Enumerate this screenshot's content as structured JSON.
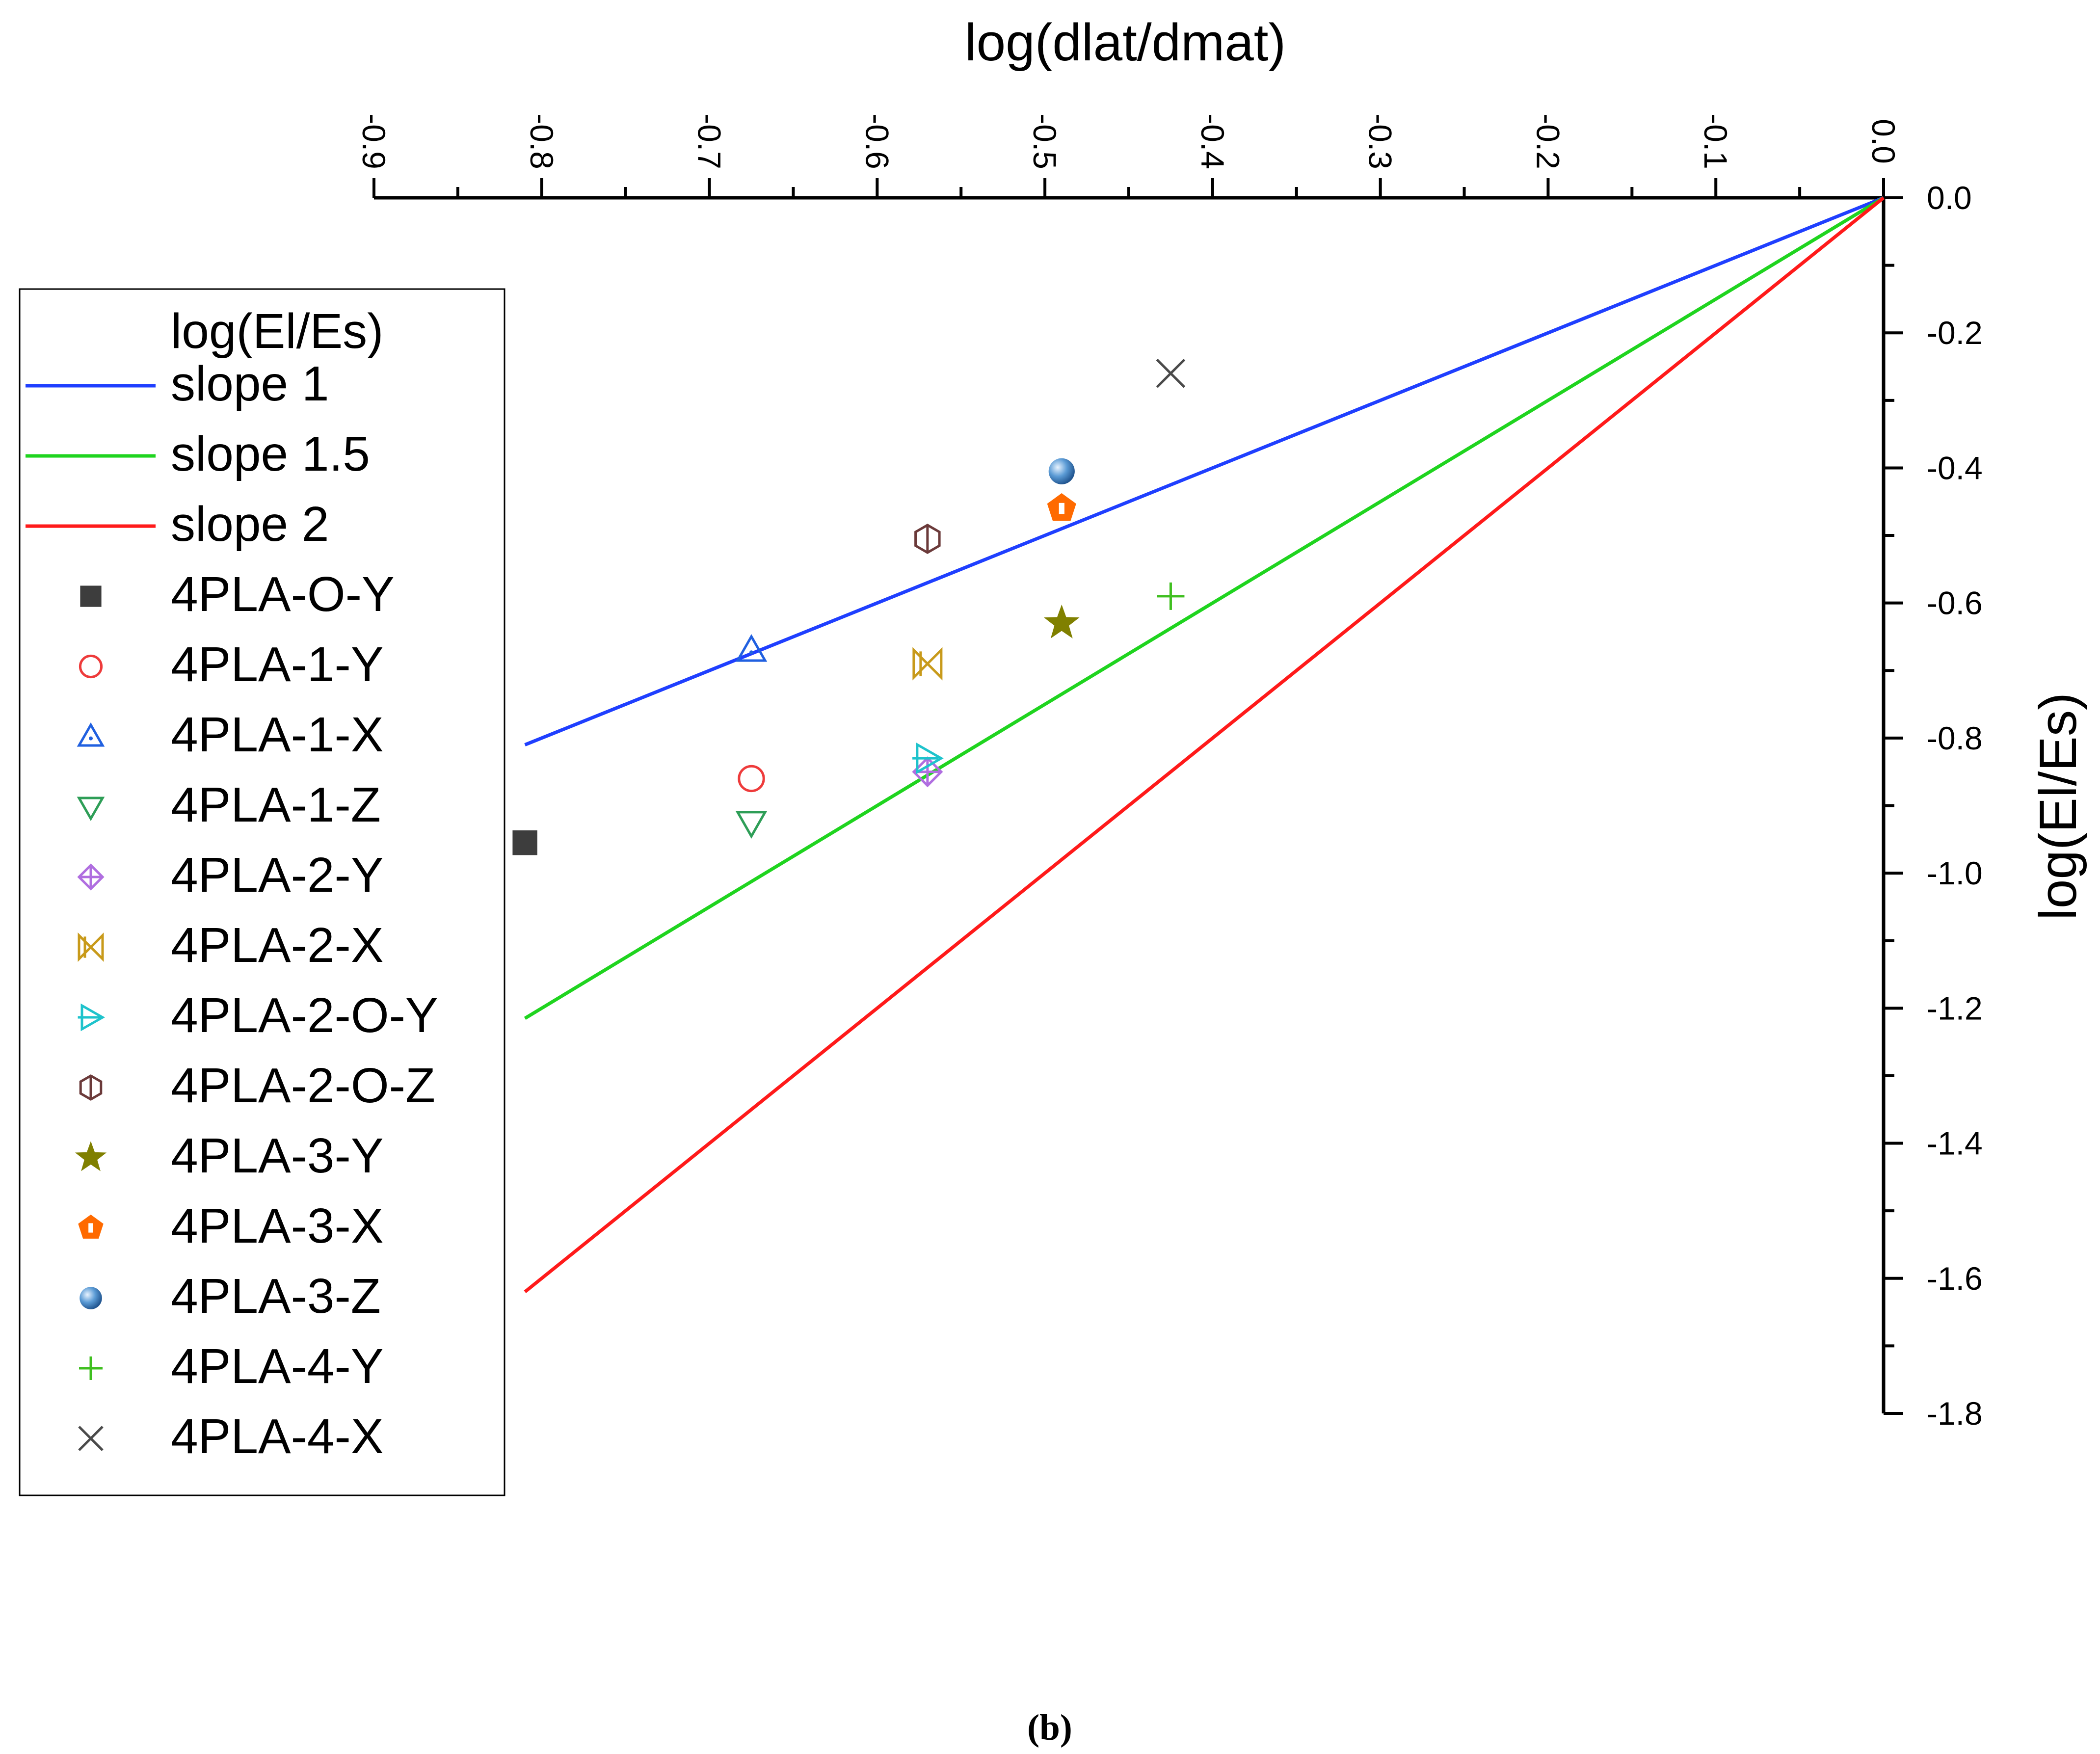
{
  "caption": "(b)",
  "chart_data": {
    "type": "scatter",
    "title": "",
    "xlabel": "log(dlat/dmat)",
    "ylabel": "log(El/Es)",
    "xlim": [
      -0.9,
      0.0
    ],
    "ylim": [
      -1.8,
      0.0
    ],
    "x_axis_position": "top",
    "y_axis_position": "right",
    "x_ticks": [
      -0.9,
      -0.8,
      -0.7,
      -0.6,
      -0.5,
      -0.4,
      -0.3,
      -0.2,
      -0.1,
      0.0
    ],
    "x_tick_labels": [
      "-0.9",
      "-0.8",
      "-0.7",
      "-0.6",
      "-0.5",
      "-0.4",
      "-0.3",
      "-0.2",
      "-0.1",
      "0.0"
    ],
    "y_ticks": [
      0.0,
      -0.2,
      -0.4,
      -0.6,
      -0.8,
      -1.0,
      -1.2,
      -1.4,
      -1.6,
      -1.8
    ],
    "y_tick_labels": [
      "0.0",
      "-0.2",
      "-0.4",
      "-0.6",
      "-0.8",
      "-1.0",
      "-1.2",
      "-1.4",
      "-1.6",
      "-1.8"
    ],
    "legend": {
      "title": "log(El/Es)",
      "placement": "left"
    },
    "lines": [
      {
        "name": "slope 1",
        "color": "#1f3fff",
        "x": [
          -0.81,
          0.0
        ],
        "y": [
          -0.81,
          0.0
        ]
      },
      {
        "name": "slope 1.5",
        "color": "#1fd41f",
        "x": [
          -0.81,
          0.0
        ],
        "y": [
          -1.215,
          0.0
        ]
      },
      {
        "name": "slope 2",
        "color": "#ff1a1a",
        "x": [
          -0.81,
          0.0
        ],
        "y": [
          -1.62,
          0.0
        ]
      }
    ],
    "series": [
      {
        "name": "4PLA-O-Y",
        "marker": "square-filled",
        "color": "#3d3d3d",
        "x": -0.81,
        "y": -0.955
      },
      {
        "name": "4PLA-1-Y",
        "marker": "circle-open",
        "color": "#ee3b3b",
        "x": -0.675,
        "y": -0.86
      },
      {
        "name": "4PLA-1-X",
        "marker": "triangle-up-open",
        "color": "#2060e0",
        "x": -0.675,
        "y": -0.67
      },
      {
        "name": "4PLA-1-Z",
        "marker": "triangle-down-open",
        "color": "#2e9e57",
        "x": -0.675,
        "y": -0.925
      },
      {
        "name": "4PLA-2-Y",
        "marker": "diamond-cross-open",
        "color": "#b06ee0",
        "x": -0.57,
        "y": -0.85
      },
      {
        "name": "4PLA-2-X",
        "marker": "hourglass-x-open",
        "color": "#c89a1a",
        "x": -0.57,
        "y": -0.69
      },
      {
        "name": "4PLA-2-O-Y",
        "marker": "triangle-right-open",
        "color": "#1ec3cc",
        "x": -0.57,
        "y": -0.83
      },
      {
        "name": "4PLA-2-O-Z",
        "marker": "hexagon-open",
        "color": "#6b3a3a",
        "x": -0.57,
        "y": -0.505
      },
      {
        "name": "4PLA-3-Y",
        "marker": "star-filled",
        "color": "#808000",
        "x": -0.49,
        "y": -0.63
      },
      {
        "name": "4PLA-3-X",
        "marker": "pentagon-filled",
        "color": "#ff6a00",
        "x": -0.49,
        "y": -0.46
      },
      {
        "name": "4PLA-3-Z",
        "marker": "sphere",
        "color": "#5b9bd5",
        "x": -0.49,
        "y": -0.405
      },
      {
        "name": "4PLA-4-Y",
        "marker": "plus",
        "color": "#3fbf1f",
        "x": -0.425,
        "y": -0.59
      },
      {
        "name": "4PLA-4-X",
        "marker": "cross",
        "color": "#4a4a4a",
        "x": -0.425,
        "y": -0.26
      }
    ]
  }
}
